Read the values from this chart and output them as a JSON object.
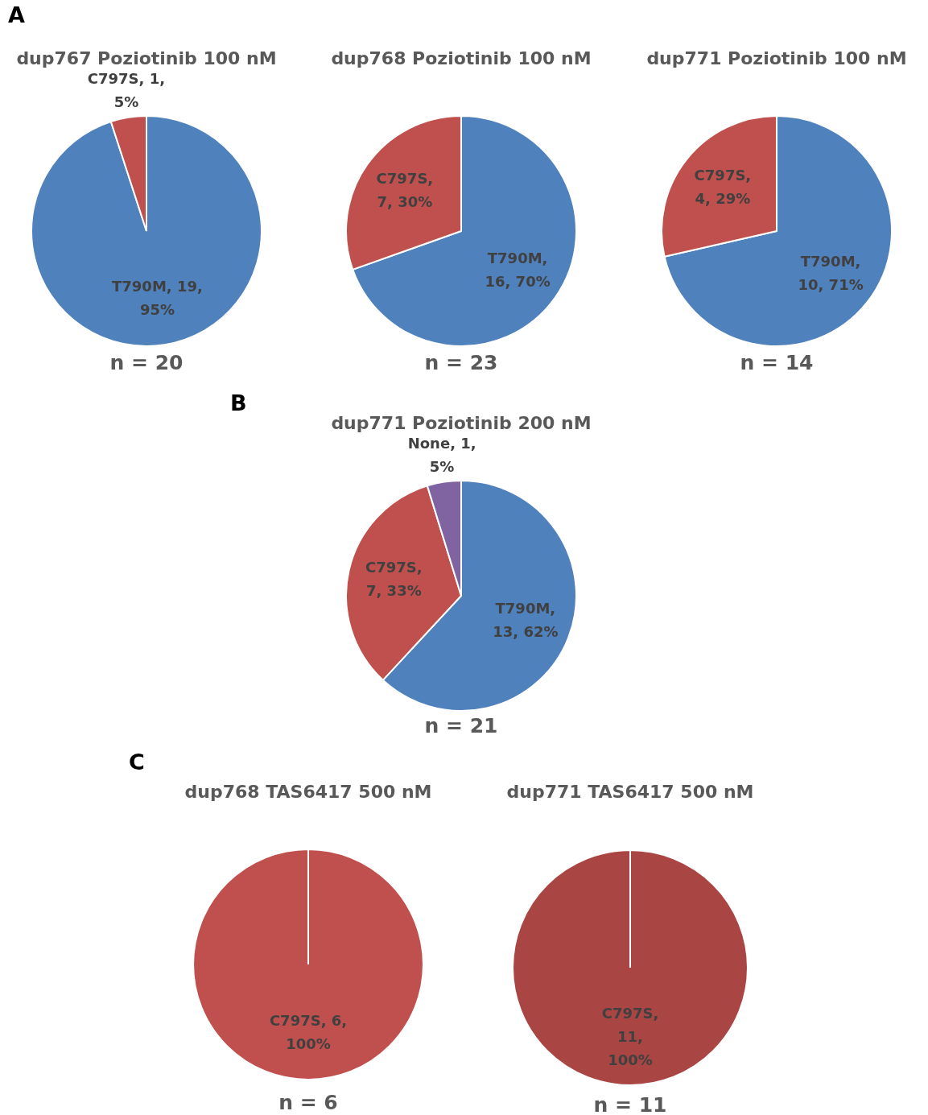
{
  "chart_data": [
    {
      "type": "pie",
      "title": "dup767 Poziotinib 100 nM",
      "categories": [
        "T790M",
        "C797S"
      ],
      "values": [
        19,
        1
      ],
      "colors": [
        "#4f81bd",
        "#c0504d"
      ],
      "value_labels": [
        ", 19, 95%",
        ", 1, 5%"
      ],
      "annotations": [
        "A",
        "n = 20"
      ]
    },
    {
      "type": "pie",
      "title": "dup768 Poziotinib 100 nM",
      "categories": [
        "T790M",
        "C797S"
      ],
      "values": [
        16,
        7
      ],
      "colors": [
        "#4f81bd",
        "#c0504d"
      ],
      "value_labels": [
        ", 16, 70%",
        ", 7, 30%"
      ],
      "annotations": [
        "n = 23"
      ]
    },
    {
      "type": "pie",
      "title": "dup771 Poziotinib 100 nM",
      "categories": [
        "T790M",
        "C797S"
      ],
      "values": [
        10,
        4
      ],
      "colors": [
        "#4f81bd",
        "#c0504d"
      ],
      "value_labels": [
        ", 10, 71%",
        ", 4, 29%"
      ],
      "annotations": [
        "n = 14"
      ]
    },
    {
      "type": "pie",
      "title": "dup771 Poziotinib 200 nM",
      "categories": [
        "T790M",
        "C797S",
        "None"
      ],
      "values": [
        13,
        7,
        1
      ],
      "colors": [
        "#4f81bd",
        "#c0504d",
        "#8064a2"
      ],
      "value_labels": [
        ", 13, 62%",
        ", 7, 33%",
        ", 1, 5%"
      ],
      "annotations": [
        "B",
        "n = 21"
      ]
    },
    {
      "type": "pie",
      "title": "dup768 TAS6417 500 nM",
      "categories": [
        "C797S"
      ],
      "values": [
        6
      ],
      "colors": [
        "#c0504d"
      ],
      "value_labels": [
        ", 6, 100%"
      ],
      "annotations": [
        "C",
        "n = 6"
      ]
    },
    {
      "type": "pie",
      "title": "dup771 TAS6417 500 nM",
      "categories": [
        "C797S"
      ],
      "values": [
        11
      ],
      "colors": [
        "#a94644"
      ],
      "value_labels": [
        ", 11, 100%"
      ],
      "annotations": [
        "n = 11"
      ]
    }
  ]
}
